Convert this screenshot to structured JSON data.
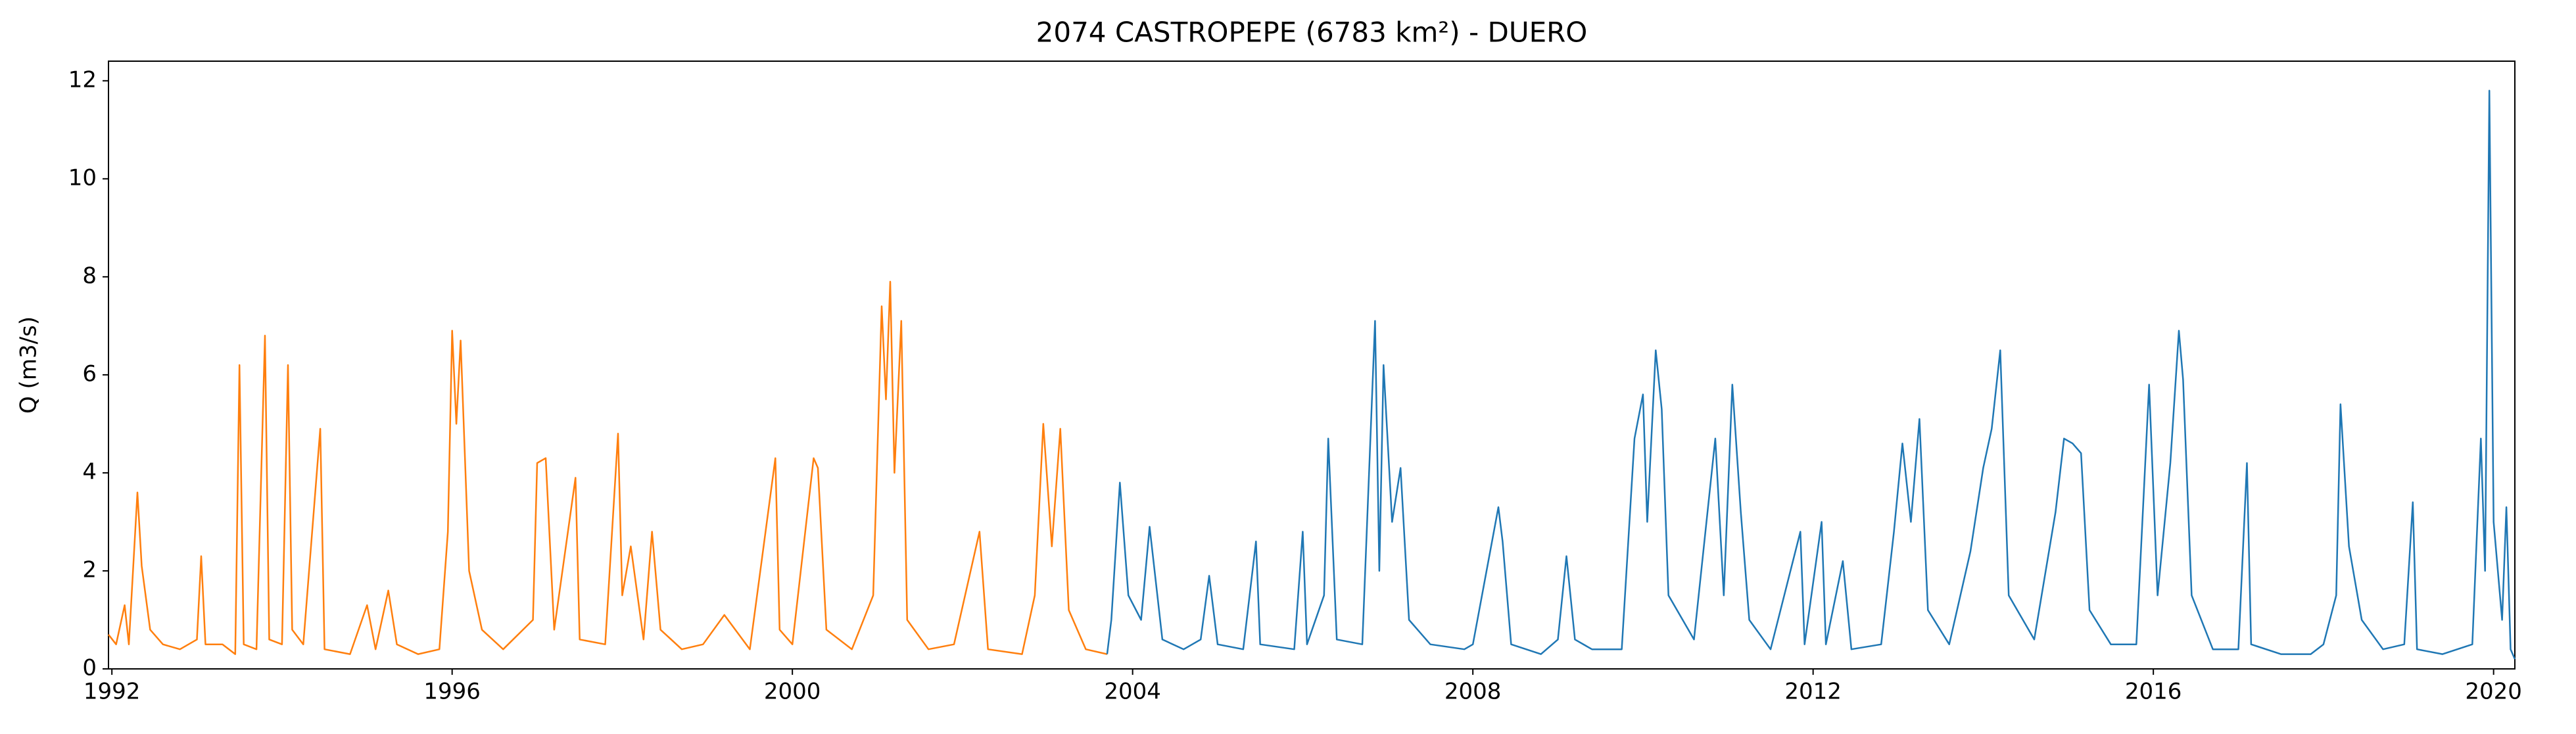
{
  "chart_data": {
    "type": "line",
    "title": "2074 CASTROPEPE (6783 km²) - DUERO",
    "y_label": "Q (m3/s)",
    "xlim": [
      1991.96,
      2020.25
    ],
    "xticks": [
      1992,
      1996,
      2000,
      2004,
      2008,
      2012,
      2016,
      2020
    ],
    "ylim": [
      0,
      12.4
    ],
    "yticks": [
      0,
      2,
      4,
      6,
      8,
      10,
      12
    ],
    "grid": false,
    "series": [
      {
        "color": "#ff7f0e",
        "x": [
          1991.96,
          1992.05,
          1992.15,
          1992.2,
          1992.3,
          1992.35,
          1992.45,
          1992.6,
          1992.8,
          1993.0,
          1993.05,
          1993.1,
          1993.3,
          1993.45,
          1993.5,
          1993.55,
          1993.7,
          1993.8,
          1993.85,
          1994.0,
          1994.07,
          1994.12,
          1994.25,
          1994.45,
          1994.5,
          1994.8,
          1995.0,
          1995.1,
          1995.25,
          1995.35,
          1995.6,
          1995.85,
          1995.95,
          1996.0,
          1996.05,
          1996.1,
          1996.2,
          1996.35,
          1996.6,
          1996.95,
          1997.0,
          1997.1,
          1997.2,
          1997.45,
          1997.5,
          1997.8,
          1997.95,
          1998.0,
          1998.1,
          1998.25,
          1998.35,
          1998.45,
          1998.7,
          1998.95,
          1999.2,
          1999.5,
          1999.8,
          1999.85,
          2000.0,
          2000.25,
          2000.3,
          2000.4,
          2000.7,
          2000.95,
          2001.05,
          2001.1,
          2001.15,
          2001.2,
          2001.28,
          2001.35,
          2001.6,
          2001.9,
          2002.2,
          2002.3,
          2002.7,
          2002.85,
          2002.95,
          2003.05,
          2003.15,
          2003.25,
          2003.45,
          2003.7
        ],
        "values": [
          0.7,
          0.5,
          1.3,
          0.5,
          3.6,
          2.1,
          0.8,
          0.5,
          0.4,
          0.6,
          2.3,
          0.5,
          0.5,
          0.3,
          6.2,
          0.5,
          0.4,
          6.8,
          0.6,
          0.5,
          6.2,
          0.8,
          0.5,
          4.9,
          0.4,
          0.3,
          1.3,
          0.4,
          1.6,
          0.5,
          0.3,
          0.4,
          2.8,
          6.9,
          5.0,
          6.7,
          2.0,
          0.8,
          0.4,
          1.0,
          4.2,
          4.3,
          0.8,
          3.9,
          0.6,
          0.5,
          4.8,
          1.5,
          2.5,
          0.6,
          2.8,
          0.8,
          0.4,
          0.5,
          1.1,
          0.4,
          4.3,
          0.8,
          0.5,
          4.3,
          4.1,
          0.8,
          0.4,
          1.5,
          7.4,
          5.5,
          7.9,
          4.0,
          7.1,
          1.0,
          0.4,
          0.5,
          2.8,
          0.4,
          0.3,
          1.5,
          5.0,
          2.5,
          4.9,
          1.2,
          0.4,
          0.3
        ]
      },
      {
        "color": "#1f77b4",
        "x": [
          2003.7,
          2003.75,
          2003.85,
          2003.95,
          2004.1,
          2004.2,
          2004.35,
          2004.6,
          2004.8,
          2004.9,
          2005.0,
          2005.3,
          2005.45,
          2005.5,
          2005.9,
          2006.0,
          2006.05,
          2006.25,
          2006.3,
          2006.4,
          2006.7,
          2006.85,
          2006.9,
          2006.95,
          2007.05,
          2007.15,
          2007.25,
          2007.5,
          2007.9,
          2008.0,
          2008.3,
          2008.35,
          2008.45,
          2008.8,
          2009.0,
          2009.1,
          2009.2,
          2009.4,
          2009.75,
          2009.9,
          2010.0,
          2010.05,
          2010.15,
          2010.22,
          2010.3,
          2010.6,
          2010.85,
          2010.95,
          2011.05,
          2011.15,
          2011.25,
          2011.5,
          2011.85,
          2011.9,
          2012.1,
          2012.15,
          2012.35,
          2012.45,
          2012.8,
          2012.95,
          2013.05,
          2013.15,
          2013.25,
          2013.35,
          2013.6,
          2013.85,
          2014.0,
          2014.1,
          2014.2,
          2014.3,
          2014.6,
          2014.85,
          2014.95,
          2015.05,
          2015.15,
          2015.25,
          2015.5,
          2015.8,
          2015.95,
          2016.05,
          2016.2,
          2016.3,
          2016.35,
          2016.45,
          2016.7,
          2017.0,
          2017.1,
          2017.15,
          2017.5,
          2017.85,
          2018.0,
          2018.15,
          2018.2,
          2018.3,
          2018.45,
          2018.7,
          2018.95,
          2019.05,
          2019.1,
          2019.4,
          2019.75,
          2019.85,
          2019.9,
          2019.95,
          2020.0,
          2020.1,
          2020.15,
          2020.2,
          2020.25
        ],
        "values": [
          0.3,
          1.0,
          3.8,
          1.5,
          1.0,
          2.9,
          0.6,
          0.4,
          0.6,
          1.9,
          0.5,
          0.4,
          2.6,
          0.5,
          0.4,
          2.8,
          0.5,
          1.5,
          4.7,
          0.6,
          0.5,
          7.1,
          2.0,
          6.2,
          3.0,
          4.1,
          1.0,
          0.5,
          0.4,
          0.5,
          3.3,
          2.6,
          0.5,
          0.3,
          0.6,
          2.3,
          0.6,
          0.4,
          0.4,
          4.7,
          5.6,
          3.0,
          6.5,
          5.3,
          1.5,
          0.6,
          4.7,
          1.5,
          5.8,
          3.2,
          1.0,
          0.4,
          2.8,
          0.5,
          3.0,
          0.5,
          2.2,
          0.4,
          0.5,
          2.8,
          4.6,
          3.0,
          5.1,
          1.2,
          0.5,
          2.4,
          4.1,
          4.9,
          6.5,
          1.5,
          0.6,
          3.2,
          4.7,
          4.6,
          4.4,
          1.2,
          0.5,
          0.5,
          5.8,
          1.5,
          4.2,
          6.9,
          5.9,
          1.5,
          0.4,
          0.4,
          4.2,
          0.5,
          0.3,
          0.3,
          0.5,
          1.5,
          5.4,
          2.5,
          1.0,
          0.4,
          0.5,
          3.4,
          0.4,
          0.3,
          0.5,
          4.7,
          2.0,
          11.8,
          3.0,
          1.0,
          3.3,
          0.4,
          0.2
        ]
      }
    ]
  }
}
